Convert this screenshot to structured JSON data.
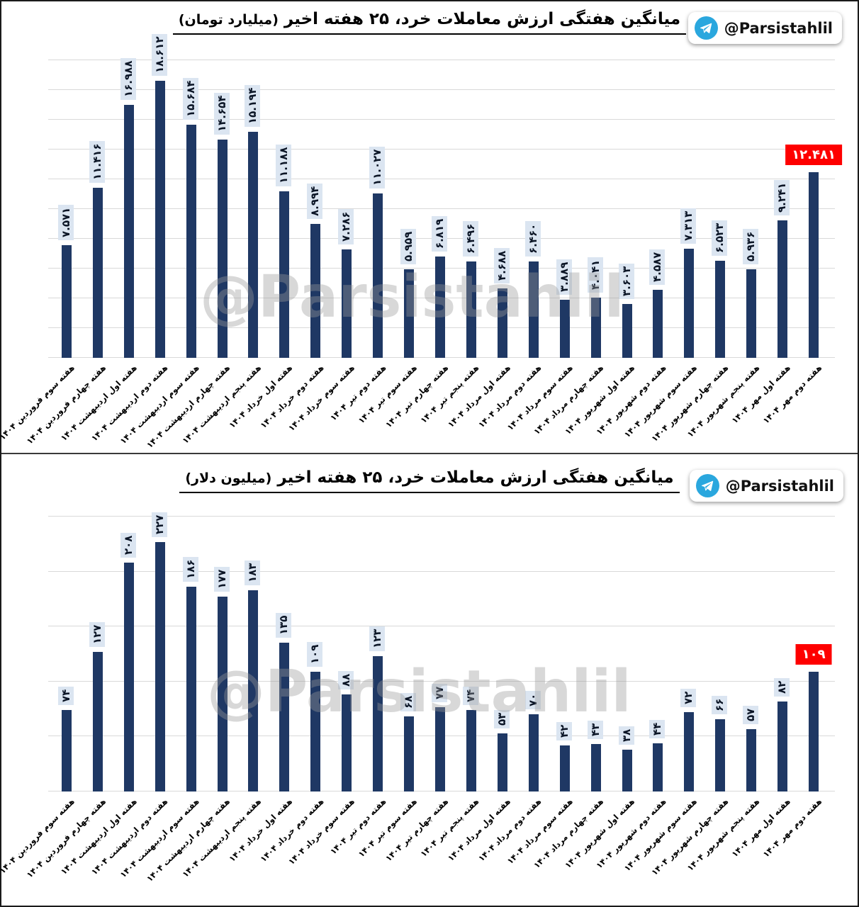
{
  "telegram_handle": "@Parsistahlil",
  "watermark": "@Parsistahlil",
  "colors": {
    "bar": "#1F3864",
    "value_label_bg": "#dbe5f1",
    "highlight_bg": "#FE0000",
    "highlight_text": "#ffffff",
    "gridline": "#d9d9d9",
    "telegram_blue": "#2AA7DE"
  },
  "chart_data": [
    {
      "type": "bar",
      "title": "میانگین هفتگی ارزش معاملات خرد، ۲۵ هفته اخیر",
      "unit": "(میلیارد تومان)",
      "ylim": [
        0,
        20000
      ],
      "grid_step": 2000,
      "grid": true,
      "legend": "none",
      "highlight_last": true,
      "categories": [
        "هفته سوم فروردین ۱۴۰۴",
        "هفته چهارم فروردین ۱۴۰۴",
        "هفته اول اردیبهشت ۱۴۰۴",
        "هفته دوم اردیبهشت ۱۴۰۴",
        "هفته سوم اردیبهشت ۱۴۰۴",
        "هفته چهارم اردیبهشت ۱۴۰۴",
        "هفته پنجم اردیبهشت ۱۴۰۴",
        "هفته اول خرداد ۱۴۰۴",
        "هفته دوم خرداد ۱۴۰۴",
        "هفته سوم خرداد ۱۴۰۴",
        "هفته دوم تیر ۱۴۰۴",
        "هفته سوم تیر ۱۴۰۴",
        "هفته چهارم تیر ۱۴۰۴",
        "هفته پنجم تیر ۱۴۰۴",
        "هفته اول مرداد ۱۴۰۴",
        "هفته دوم مرداد ۱۴۰۴",
        "هفته سوم مرداد ۱۴۰۴",
        "هفته چهارم مرداد ۱۴۰۴",
        "هفته اول شهریور ۱۴۰۴",
        "هفته دوم شهریور ۱۴۰۴",
        "هفته سوم شهریور ۱۴۰۴",
        "هفته چهارم شهریور ۱۴۰۴",
        "هفته پنجم شهریور ۱۴۰۴",
        "هفته اول مهر ۱۴۰۴",
        "هفته دوم مهر ۱۴۰۴"
      ],
      "values": [
        7571,
        11416,
        16988,
        18612,
        15684,
        14654,
        15194,
        11188,
        8994,
        7286,
        11027,
        5959,
        6819,
        6496,
        4688,
        6460,
        3889,
        4041,
        3603,
        4587,
        7313,
        6523,
        5936,
        9241,
        12481
      ],
      "value_labels": [
        "۷.۵۷۱",
        "۱۱.۴۱۶",
        "۱۶.۹۸۸",
        "۱۸.۶۱۲",
        "۱۵.۶۸۴",
        "۱۴.۶۵۴",
        "۱۵.۱۹۴",
        "۱۱.۱۸۸",
        "۸.۹۹۴",
        "۷.۲۸۶",
        "۱۱.۰۲۷",
        "۵.۹۵۹",
        "۶.۸۱۹",
        "۶.۴۹۶",
        "۴.۶۸۸",
        "۶.۴۶۰",
        "۳.۸۸۹",
        "۴.۰۴۱",
        "۳.۶۰۳",
        "۴.۵۸۷",
        "۷.۳۱۳",
        "۶.۵۲۳",
        "۵.۹۳۶",
        "۹.۲۴۱",
        "۱۲.۴۸۱"
      ]
    },
    {
      "type": "bar",
      "title": "میانگین هفتگی ارزش معاملات خرد، ۲۵ هفته اخیر",
      "unit": "(میلیون دلار)",
      "ylim": [
        0,
        250
      ],
      "grid_step": 50,
      "grid": true,
      "legend": "none",
      "highlight_last": true,
      "categories": [
        "هفته سوم فروردین ۱۴۰۴",
        "هفته چهارم فروردین ۱۴۰۴",
        "هفته اول اردیبهشت ۱۴۰۴",
        "هفته دوم اردیبهشت ۱۴۰۴",
        "هفته سوم اردیبهشت ۱۴۰۴",
        "هفته چهارم اردیبهشت ۱۴۰۴",
        "هفته پنجم اردیبهشت ۱۴۰۴",
        "هفته اول خرداد ۱۴۰۴",
        "هفته دوم خرداد ۱۴۰۴",
        "هفته سوم خرداد ۱۴۰۴",
        "هفته دوم تیر ۱۴۰۴",
        "هفته سوم تیر ۱۴۰۴",
        "هفته چهارم تیر ۱۴۰۴",
        "هفته پنجم تیر ۱۴۰۴",
        "هفته اول مرداد ۱۴۰۴",
        "هفته دوم مرداد ۱۴۰۴",
        "هفته سوم مرداد ۱۴۰۴",
        "هفته چهارم مرداد ۱۴۰۴",
        "هفته اول شهریور ۱۴۰۴",
        "هفته دوم شهریور ۱۴۰۴",
        "هفته سوم شهریور ۱۴۰۴",
        "هفته چهارم شهریور ۱۴۰۴",
        "هفته پنجم شهریور ۱۴۰۴",
        "هفته اول مهر ۱۴۰۴",
        "هفته دوم مهر ۱۴۰۴"
      ],
      "values": [
        74,
        127,
        208,
        227,
        186,
        177,
        183,
        135,
        109,
        88,
        123,
        68,
        77,
        74,
        53,
        70,
        42,
        43,
        38,
        44,
        72,
        66,
        57,
        82,
        109
      ],
      "value_labels": [
        "۷۴",
        "۱۲۷",
        "۲۰۸",
        "۲۲۷",
        "۱۸۶",
        "۱۷۷",
        "۱۸۳",
        "۱۳۵",
        "۱۰۹",
        "۸۸",
        "۱۲۳",
        "۶۸",
        "۷۷",
        "۷۴",
        "۵۳",
        "۷۰",
        "۴۲",
        "۴۳",
        "۳۸",
        "۴۴",
        "۷۲",
        "۶۶",
        "۵۷",
        "۸۲",
        "۱۰۹"
      ]
    }
  ]
}
